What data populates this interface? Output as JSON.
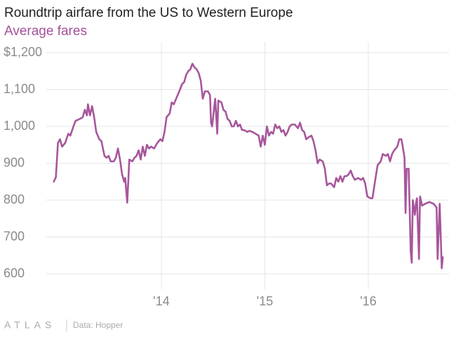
{
  "chart_data": {
    "type": "line",
    "title": "Roundtrip airfare from the US to Western Europe",
    "subtitle": "Average fares",
    "source": "Data: Hopper",
    "logo": "ATLAS",
    "xlim": [
      2012.44,
      2016.78
    ],
    "ylim": [
      580,
      1220
    ],
    "xticks": [
      {
        "value": 2014,
        "label": "'14"
      },
      {
        "value": 2015,
        "label": "'15"
      },
      {
        "value": 2016,
        "label": "'16"
      }
    ],
    "yticks": [
      {
        "value": 1200,
        "label": "$1,200"
      },
      {
        "value": 1100,
        "label": "1,100"
      },
      {
        "value": 1000,
        "label": "1,000"
      },
      900,
      800,
      700,
      600
    ],
    "grid": true,
    "x": [
      2012.96,
      2012.98,
      2013.0,
      2013.02,
      2013.04,
      2013.07,
      2013.1,
      2013.12,
      2013.15,
      2013.17,
      2013.21,
      2013.24,
      2013.26,
      2013.28,
      2013.29,
      2013.31,
      2013.33,
      2013.35,
      2013.37,
      2013.4,
      2013.42,
      2013.45,
      2013.47,
      2013.49,
      2013.51,
      2013.54,
      2013.56,
      2013.58,
      2013.6,
      2013.62,
      2013.64,
      2013.65,
      2013.67,
      2013.69,
      2013.72,
      2013.74,
      2013.76,
      2013.78,
      2013.8,
      2013.82,
      2013.84,
      2013.86,
      2013.88,
      2013.9,
      2013.93,
      2013.96,
      2013.99,
      2014.01,
      2014.03,
      2014.05,
      2014.08,
      2014.1,
      2014.12,
      2014.15,
      2014.18,
      2014.2,
      2014.22,
      2014.24,
      2014.26,
      2014.28,
      2014.3,
      2014.32,
      2014.34,
      2014.36,
      2014.38,
      2014.4,
      2014.42,
      2014.45,
      2014.47,
      2014.48,
      2014.49,
      2014.52,
      2014.54,
      2014.55,
      2014.58,
      2014.6,
      2014.62,
      2014.64,
      2014.66,
      2014.68,
      2014.7,
      2014.72,
      2014.74,
      2014.76,
      2014.78,
      2014.8,
      2014.83,
      2014.85,
      2014.88,
      2014.91,
      2014.94,
      2014.96,
      2014.98,
      2015.0,
      2015.02,
      2015.04,
      2015.06,
      2015.08,
      2015.1,
      2015.12,
      2015.14,
      2015.16,
      2015.18,
      2015.2,
      2015.22,
      2015.24,
      2015.26,
      2015.29,
      2015.32,
      2015.34,
      2015.36,
      2015.38,
      2015.4,
      2015.42,
      2015.45,
      2015.47,
      2015.49,
      2015.51,
      2015.53,
      2015.56,
      2015.58,
      2015.6,
      2015.62,
      2015.64,
      2015.67,
      2015.69,
      2015.71,
      2015.73,
      2015.75,
      2015.77,
      2015.79,
      2015.81,
      2015.83,
      2015.85,
      2015.87,
      2015.9,
      2015.93,
      2015.95,
      2015.97,
      2015.99,
      2016.02,
      2016.04,
      2016.07,
      2016.09,
      2016.12,
      2016.14,
      2016.17,
      2016.19,
      2016.21,
      2016.23,
      2016.25,
      2016.28,
      2016.3,
      2016.32,
      2016.33,
      2016.35,
      2016.36,
      2016.37,
      2016.39,
      2016.41,
      2016.42,
      2016.43,
      2016.45,
      2016.46,
      2016.47,
      2016.49,
      2016.5,
      2016.52,
      2016.55,
      2016.59,
      2016.63,
      2016.66,
      2016.67,
      2016.69,
      2016.71,
      2016.72
    ],
    "series": [
      {
        "name": "Average fares",
        "color": "#a7569b",
        "values": [
          850,
          862,
          955,
          965,
          945,
          955,
          980,
          975,
          1000,
          1015,
          1020,
          1025,
          1045,
          1030,
          1060,
          1030,
          1055,
          1025,
          985,
          965,
          960,
          920,
          915,
          920,
          905,
          905,
          915,
          940,
          910,
          870,
          850,
          860,
          793,
          910,
          905,
          915,
          920,
          935,
          910,
          945,
          920,
          950,
          940,
          945,
          940,
          955,
          965,
          960,
          985,
          1025,
          1035,
          1065,
          1060,
          1080,
          1100,
          1115,
          1120,
          1140,
          1150,
          1155,
          1170,
          1160,
          1155,
          1145,
          1125,
          1075,
          1095,
          1095,
          1085,
          1010,
          1000,
          1075,
          980,
          1070,
          1065,
          1045,
          1040,
          1020,
          1015,
          1000,
          1000,
          1015,
          1000,
          1005,
          990,
          990,
          985,
          988,
          985,
          980,
          975,
          945,
          975,
          950,
          1000,
          975,
          985,
          980,
          1005,
          995,
          1000,
          985,
          990,
          975,
          985,
          1000,
          1005,
          1005,
          995,
          1010,
          990,
          985,
          965,
          970,
          975,
          960,
          935,
          900,
          910,
          905,
          885,
          840,
          845,
          845,
          835,
          860,
          850,
          865,
          850,
          865,
          865,
          870,
          880,
          865,
          855,
          860,
          855,
          860,
          845,
          810,
          805,
          805,
          860,
          895,
          905,
          925,
          920,
          925,
          905,
          925,
          935,
          945,
          965,
          965,
          950,
          915,
          765,
          885,
          885,
          660,
          630,
          800,
          760,
          790,
          805,
          640,
          810,
          785,
          790,
          795,
          790,
          780,
          640,
          790,
          615,
          645
        ]
      }
    ]
  }
}
